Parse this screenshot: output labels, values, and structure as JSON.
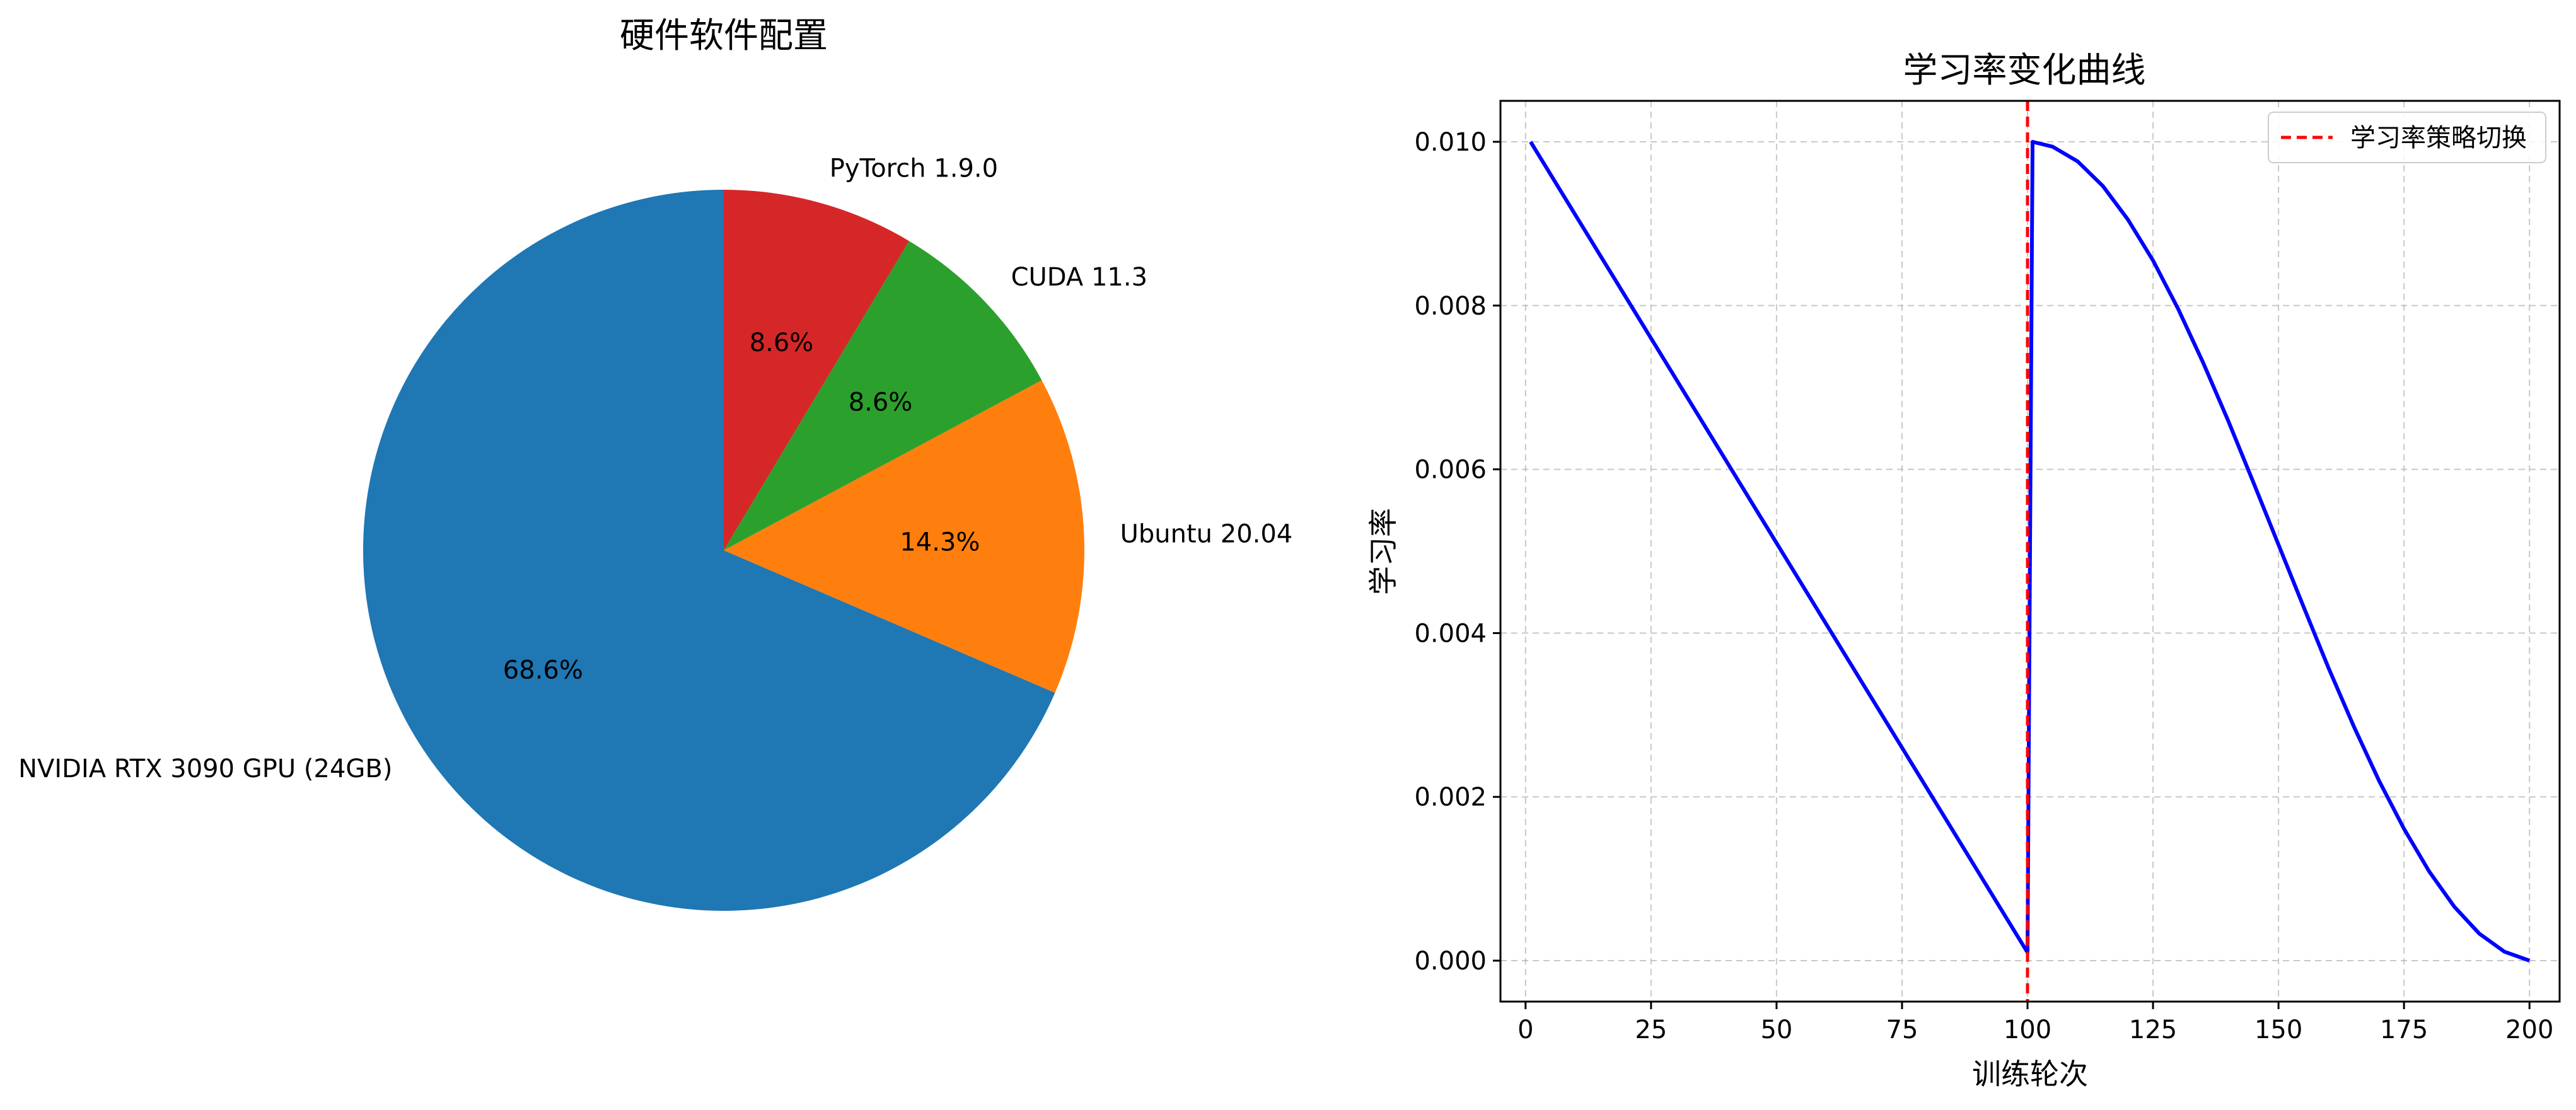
{
  "chart_data": [
    {
      "type": "pie",
      "title": "硬件软件配置",
      "labels": [
        "NVIDIA RTX 3090 GPU (24GB)",
        "Ubuntu 20.04",
        "CUDA 11.3",
        "PyTorch 1.9.0"
      ],
      "values": [
        68.6,
        14.3,
        8.6,
        8.6
      ],
      "pct_labels": [
        "68.6%",
        "14.3%",
        "8.6%",
        "8.6%"
      ],
      "start_angle_deg": 90,
      "direction": "counterclockwise",
      "colors": [
        "#1f77b4",
        "#ff7f0e",
        "#2ca02c",
        "#d62728"
      ]
    },
    {
      "type": "line",
      "title": "学习率变化曲线",
      "xlabel": "训练轮次",
      "ylabel": "学习率",
      "xlim": [
        -5,
        206
      ],
      "ylim": [
        -0.0005,
        0.0105
      ],
      "xticks": [
        0,
        25,
        50,
        75,
        100,
        125,
        150,
        175,
        200
      ],
      "xtick_labels": [
        "0",
        "25",
        "50",
        "75",
        "100",
        "125",
        "150",
        "175",
        "200"
      ],
      "yticks": [
        0.0,
        0.002,
        0.004,
        0.006,
        0.008,
        0.01
      ],
      "ytick_labels": [
        "0.000",
        "0.002",
        "0.004",
        "0.006",
        "0.008",
        "0.010"
      ],
      "grid": true,
      "legend_position": "upper right",
      "series": [
        {
          "color": "#0000ff",
          "x": [
            1,
            10,
            20,
            30,
            40,
            50,
            60,
            70,
            80,
            90,
            100,
            101,
            105,
            110,
            115,
            120,
            125,
            130,
            135,
            140,
            145,
            150,
            155,
            160,
            165,
            170,
            175,
            180,
            185,
            190,
            195,
            200
          ],
          "y": [
            0.01,
            0.0091,
            0.0081,
            0.0071,
            0.0061,
            0.0051,
            0.0041,
            0.0031,
            0.0021,
            0.0011,
            0.0001,
            0.01,
            0.00994,
            0.00976,
            0.00946,
            0.00905,
            0.00855,
            0.00796,
            0.0073,
            0.00659,
            0.00584,
            0.00508,
            0.00432,
            0.00357,
            0.00286,
            0.0022,
            0.00161,
            0.00109,
            0.00066,
            0.00033,
            0.00011,
            0.0
          ]
        }
      ],
      "vline": {
        "x": 100,
        "label": "学习率策略切换",
        "color": "#ff0000",
        "style": "dashed"
      }
    }
  ]
}
